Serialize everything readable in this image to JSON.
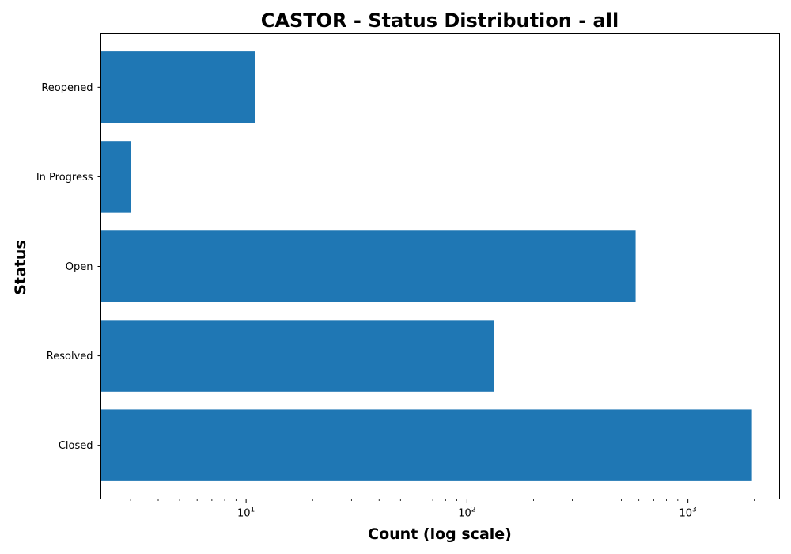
{
  "chart_data": {
    "type": "bar",
    "orientation": "horizontal",
    "title": "CASTOR - Status Distribution - all",
    "xlabel": "Count (log scale)",
    "ylabel": "Status",
    "xscale": "log",
    "xlim": [
      2.2,
      2600
    ],
    "categories": [
      "Closed",
      "Resolved",
      "Open",
      "In Progress",
      "Reopened"
    ],
    "values": [
      1950,
      133,
      580,
      3,
      11
    ],
    "x_ticks": [
      {
        "value": 10,
        "base": "10",
        "exp": "1"
      },
      {
        "value": 100,
        "base": "10",
        "exp": "2"
      },
      {
        "value": 1000,
        "base": "10",
        "exp": "3"
      }
    ],
    "bar_color": "#1f77b4",
    "grid": false,
    "legend": "none"
  }
}
